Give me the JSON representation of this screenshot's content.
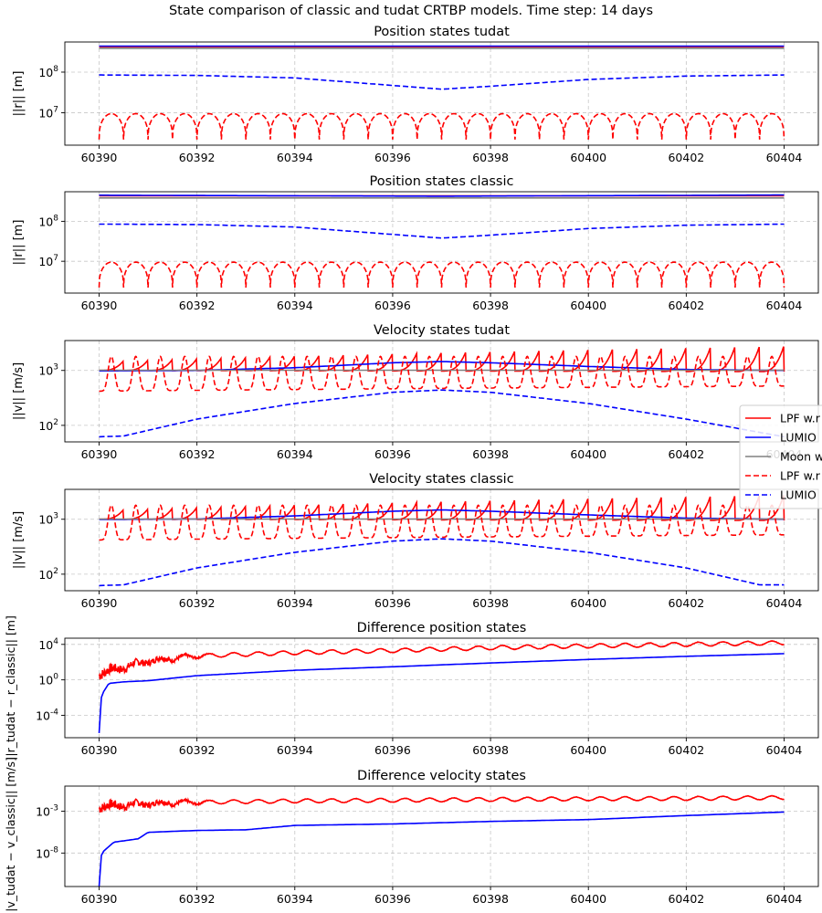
{
  "figure_title": "State comparison of classic and tudat CRTBP models. Time step: 14 days",
  "legend_entries": [
    "LPF w.r",
    "LUMIO",
    "Moon w",
    "LPF w.r",
    "LUMIO"
  ],
  "chart_data": [
    {
      "type": "line",
      "title": "Position states tudat",
      "ylabel": "||r|| [m]",
      "yscale": "log",
      "xlim": [
        60389.3,
        60404.7
      ],
      "ylim": [
        1600000.0,
        550000000.0
      ],
      "x_ticks": [
        60390,
        60392,
        60394,
        60396,
        60398,
        60400,
        60402,
        60404
      ],
      "y_ticks": [
        {
          "value": 10000000.0,
          "label": "10^7"
        },
        {
          "value": 100000000.0,
          "label": "10^8"
        }
      ],
      "grid": true,
      "series": [
        {
          "label": "LPF w.r",
          "color": "#ff0000",
          "style": "solid",
          "x": [
            60390,
            60404
          ],
          "y": [
            420000000.0,
            420000000.0
          ]
        },
        {
          "label": "LUMIO",
          "color": "#0000ff",
          "style": "solid",
          "x": [
            60390,
            60404
          ],
          "y": [
            435000000.0,
            435000000.0
          ]
        },
        {
          "label": "Moon w",
          "color": "#808080",
          "style": "solid",
          "x": [
            60390,
            60404
          ],
          "y": [
            385000000.0,
            385000000.0
          ]
        },
        {
          "label": "LPF w.r",
          "color": "#ff0000",
          "style": "dashed",
          "pattern": "arches",
          "period": 0.5,
          "min": 2200000.0,
          "max": 9500000.0
        },
        {
          "label": "LUMIO",
          "color": "#0000ff",
          "style": "dashed",
          "x": [
            60390,
            60392,
            60394,
            60396,
            60397,
            60398,
            60400,
            60402,
            60404
          ],
          "y": [
            85000000.0,
            83000000.0,
            72000000.0,
            47000000.0,
            38000000.0,
            45000000.0,
            66000000.0,
            80000000.0,
            85000000.0
          ]
        }
      ]
    },
    {
      "type": "line",
      "title": "Position states classic",
      "ylabel": "||r|| [m]",
      "yscale": "log",
      "xlim": [
        60389.3,
        60404.7
      ],
      "ylim": [
        1600000.0,
        550000000.0
      ],
      "x_ticks": [
        60390,
        60392,
        60394,
        60396,
        60398,
        60400,
        60402,
        60404
      ],
      "y_ticks": [
        {
          "value": 10000000.0,
          "label": "10^7"
        },
        {
          "value": 100000000.0,
          "label": "10^8"
        }
      ],
      "grid": true,
      "series": [
        {
          "label": "LPF w.r",
          "color": "#ff0000",
          "style": "solid",
          "x": [
            60390,
            60404
          ],
          "y": [
            435000000.0,
            435000000.0
          ]
        },
        {
          "label": "LUMIO",
          "color": "#0000ff",
          "style": "solid",
          "x": [
            60390,
            60397,
            60404
          ],
          "y": [
            450000000.0,
            425000000.0,
            455000000.0
          ]
        },
        {
          "label": "Moon w",
          "color": "#808080",
          "style": "solid",
          "x": [
            60390,
            60404
          ],
          "y": [
            385000000.0,
            385000000.0
          ]
        },
        {
          "label": "LPF w.r",
          "color": "#ff0000",
          "style": "dashed",
          "pattern": "arches",
          "period": 0.5,
          "min": 2200000.0,
          "max": 9500000.0
        },
        {
          "label": "LUMIO",
          "color": "#0000ff",
          "style": "dashed",
          "x": [
            60390,
            60392,
            60394,
            60396,
            60397,
            60398,
            60400,
            60402,
            60404
          ],
          "y": [
            85000000.0,
            83000000.0,
            72000000.0,
            47000000.0,
            38000000.0,
            45000000.0,
            66000000.0,
            80000000.0,
            85000000.0
          ]
        }
      ]
    },
    {
      "type": "line",
      "title": "Velocity states tudat",
      "ylabel": "||v|| [m/s]",
      "yscale": "log",
      "xlim": [
        60389.3,
        60404.7
      ],
      "ylim": [
        50,
        3500
      ],
      "x_ticks": [
        60390,
        60392,
        60394,
        60396,
        60398,
        60400,
        60402,
        60404
      ],
      "y_ticks": [
        {
          "value": 100,
          "label": "10^2"
        },
        {
          "value": 1000,
          "label": "10^3"
        }
      ],
      "grid": true,
      "series": [
        {
          "label": "LPF w.r",
          "color": "#ff0000",
          "style": "solid",
          "pattern": "sawtooth",
          "period": 0.5,
          "min_start": 1000,
          "max_start": 1450,
          "min_end": 950,
          "max_end": 2900
        },
        {
          "label": "LUMIO",
          "color": "#0000ff",
          "style": "solid",
          "x": [
            60390,
            60392,
            60394,
            60396,
            60397,
            60398,
            60400,
            60402,
            60404
          ],
          "y": [
            980,
            1000,
            1120,
            1380,
            1450,
            1380,
            1180,
            1040,
            1000
          ]
        },
        {
          "label": "Moon w",
          "color": "#808080",
          "style": "solid",
          "x": [
            60390,
            60404
          ],
          "y": [
            1010,
            1010
          ]
        },
        {
          "label": "LPF w.r",
          "color": "#ff0000",
          "style": "dashed",
          "pattern": "valleys",
          "period": 0.5,
          "min_start": 420,
          "max_start": 1800,
          "min_end": 520,
          "max_end": 1800
        },
        {
          "label": "LUMIO",
          "color": "#0000ff",
          "style": "dashed",
          "x": [
            60390,
            60390.5,
            60392,
            60394,
            60396,
            60397,
            60398,
            60400,
            60402,
            60404
          ],
          "y": [
            62,
            64,
            130,
            250,
            400,
            440,
            400,
            250,
            130,
            62
          ]
        }
      ]
    },
    {
      "type": "line",
      "title": "Velocity states classic",
      "ylabel": "||v|| [m/s]",
      "yscale": "log",
      "xlim": [
        60389.3,
        60404.7
      ],
      "ylim": [
        50,
        3500
      ],
      "x_ticks": [
        60390,
        60392,
        60394,
        60396,
        60398,
        60400,
        60402,
        60404
      ],
      "y_ticks": [
        {
          "value": 100,
          "label": "10^2"
        },
        {
          "value": 1000,
          "label": "10^3"
        }
      ],
      "grid": true,
      "series": [
        {
          "label": "LPF w.r",
          "color": "#ff0000",
          "style": "solid",
          "pattern": "sawtooth",
          "period": 0.5,
          "min_start": 1000,
          "max_start": 1450,
          "min_end": 950,
          "max_end": 2900
        },
        {
          "label": "LUMIO",
          "color": "#0000ff",
          "style": "solid",
          "x": [
            60390,
            60392,
            60394,
            60396,
            60397,
            60398,
            60400,
            60402,
            60404
          ],
          "y": [
            990,
            1010,
            1150,
            1400,
            1480,
            1400,
            1200,
            1050,
            1000
          ]
        },
        {
          "label": "Moon w",
          "color": "#808080",
          "style": "solid",
          "x": [
            60390,
            60404
          ],
          "y": [
            1010,
            1010
          ]
        },
        {
          "label": "LPF w.r",
          "color": "#ff0000",
          "style": "dashed",
          "pattern": "valleys",
          "period": 0.5,
          "min_start": 420,
          "max_start": 1800,
          "min_end": 520,
          "max_end": 1800
        },
        {
          "label": "LUMIO",
          "color": "#0000ff",
          "style": "dashed",
          "x": [
            60390,
            60390.5,
            60392,
            60394,
            60396,
            60397,
            60398,
            60400,
            60402,
            60403.5,
            60404
          ],
          "y": [
            62,
            64,
            130,
            250,
            400,
            440,
            400,
            250,
            130,
            64,
            64
          ]
        }
      ]
    },
    {
      "type": "line",
      "title": "Difference position states",
      "ylabel": "||r_tudat − r_classic|| [m]",
      "yscale": "log",
      "xlim": [
        60389.3,
        60404.7
      ],
      "ylim": [
        3e-07,
        50000.0
      ],
      "x_ticks": [
        60390,
        60392,
        60394,
        60396,
        60398,
        60400,
        60402,
        60404
      ],
      "y_ticks": [
        {
          "value": 0.0001,
          "label": "10^-4"
        },
        {
          "value": 1,
          "label": "10^0"
        },
        {
          "value": 10000.0,
          "label": "10^4"
        }
      ],
      "grid": true,
      "series": [
        {
          "label": "LPF w.r",
          "color": "#ff0000",
          "style": "solid",
          "pattern": "noisy-ripple",
          "start": 60390,
          "x": [
            60390,
            60391,
            60392,
            60394,
            60396,
            60398,
            60400,
            60402,
            60404
          ],
          "y": [
            3,
            80,
            300,
            700,
            1200,
            2500,
            4000,
            6000,
            9000
          ]
        },
        {
          "label": "LUMIO",
          "color": "#0000ff",
          "style": "solid",
          "x": [
            60390,
            60390.05,
            60390.2,
            60390.5,
            60391,
            60392,
            60393,
            60394,
            60396,
            60398,
            60400,
            60402,
            60404
          ],
          "y": [
            1e-06,
            0.02,
            0.4,
            0.6,
            0.8,
            3,
            6,
            12,
            30,
            80,
            200,
            450,
            900
          ]
        }
      ]
    },
    {
      "type": "line",
      "title": "Difference velocity states",
      "ylabel": "||v_tudat − v_classic|| [m/s]",
      "yscale": "log",
      "xlim": [
        60389.3,
        60404.7
      ],
      "ylim": [
        1e-12,
        1
      ],
      "x_ticks": [
        60390,
        60392,
        60394,
        60396,
        60398,
        60400,
        60402,
        60404
      ],
      "y_ticks": [
        {
          "value": 1e-08,
          "label": "10^-8"
        },
        {
          "value": 0.001,
          "label": "10^-3"
        }
      ],
      "grid": true,
      "series": [
        {
          "label": "LPF w.r",
          "color": "#ff0000",
          "style": "solid",
          "pattern": "noisy-ripple",
          "start": 60390,
          "x": [
            60390,
            60391,
            60392,
            60394,
            60396,
            60398,
            60400,
            60402,
            60404
          ],
          "y": [
            0.002,
            0.005,
            0.007,
            0.01,
            0.012,
            0.015,
            0.018,
            0.02,
            0.025
          ]
        },
        {
          "label": "LUMIO",
          "color": "#0000ff",
          "style": "solid",
          "x": [
            60390,
            60390.05,
            60390.3,
            60390.8,
            60391,
            60392,
            60393,
            60394,
            60396,
            60398,
            60400,
            60402,
            60404
          ],
          "y": [
            1e-12,
            1e-08,
            2e-07,
            5e-07,
            3e-06,
            5e-06,
            6e-06,
            2e-05,
            3e-05,
            6e-05,
            0.0001,
            0.0003,
            0.0008
          ]
        }
      ]
    }
  ]
}
